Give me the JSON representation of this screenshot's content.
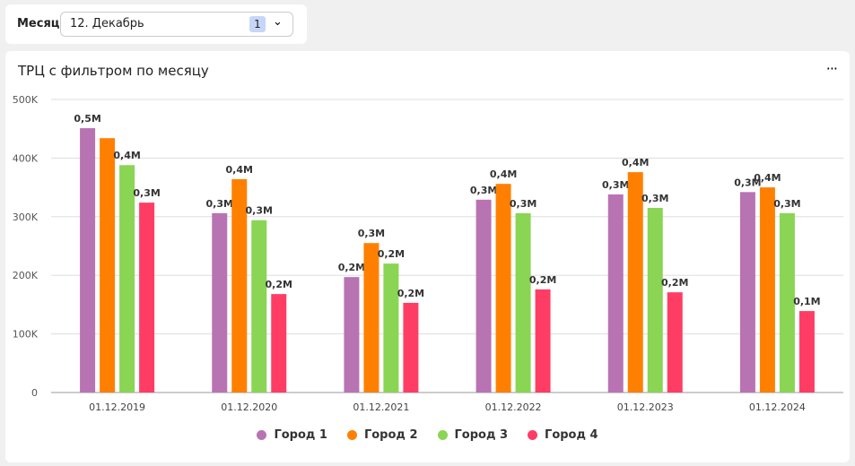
{
  "filter": {
    "label": "Месяц",
    "value": "12. Декабрь",
    "count": "1"
  },
  "card": {
    "menu": "···"
  },
  "chart_data": {
    "type": "bar",
    "title": "ТРЦ с фильтром по месяцу",
    "categories": [
      "01.12.2019",
      "01.12.2020",
      "01.12.2021",
      "01.12.2022",
      "01.12.2023",
      "01.12.2024"
    ],
    "ylim": [
      0,
      500000
    ],
    "yticks": [
      {
        "v": 0,
        "l": "0"
      },
      {
        "v": 100000,
        "l": "100K"
      },
      {
        "v": 200000,
        "l": "200K"
      },
      {
        "v": 300000,
        "l": "300K"
      },
      {
        "v": 400000,
        "l": "400K"
      },
      {
        "v": 500000,
        "l": "500K"
      }
    ],
    "legend_position": "bottom",
    "series": [
      {
        "name": "Город 1",
        "color": "#b873b3",
        "values": [
          451000,
          306000,
          197000,
          329000,
          338000,
          342000
        ],
        "labels": [
          "0,5M",
          "0,3M",
          "0,2M",
          "0,3M",
          "0,3M",
          "0,3M"
        ]
      },
      {
        "name": "Город 2",
        "color": "#ff8000",
        "values": [
          434000,
          364000,
          255000,
          356000,
          376000,
          350000
        ],
        "labels": [
          "",
          "0,4M",
          "0,3M",
          "0,4M",
          "0,4M",
          "0,4M"
        ]
      },
      {
        "name": "Город 3",
        "color": "#8ad554",
        "values": [
          388000,
          294000,
          220000,
          306000,
          315000,
          306000
        ],
        "labels": [
          "0,4M",
          "0,3M",
          "0,2M",
          "0,3M",
          "0,3M",
          "0,3M"
        ]
      },
      {
        "name": "Город 4",
        "color": "#ff3d64",
        "values": [
          324000,
          168000,
          153000,
          176000,
          171000,
          139000
        ],
        "labels": [
          "0,3M",
          "0,2M",
          "0,2M",
          "0,2M",
          "0,2M",
          "0,1M"
        ]
      }
    ]
  }
}
